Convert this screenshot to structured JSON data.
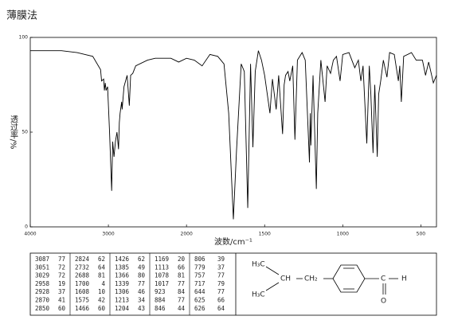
{
  "chart_data": {
    "type": "line",
    "title": "薄膜法",
    "x_label": "波数/cm⁻¹",
    "y_label": "透过率/%",
    "xlim": [
      4000,
      400
    ],
    "x_scale_break": 2000,
    "x_scale_ratio": 2,
    "xticks": [
      4000,
      3000,
      2000,
      1500,
      1000,
      500
    ],
    "ylim": [
      0,
      100
    ],
    "yticks": [
      0,
      50,
      100
    ],
    "x": [
      4000,
      3800,
      3600,
      3400,
      3300,
      3200,
      3100,
      3087,
      3060,
      3051,
      3040,
      3029,
      3010,
      2985,
      2958,
      2945,
      2928,
      2910,
      2890,
      2870,
      2860,
      2850,
      2830,
      2824,
      2800,
      2760,
      2732,
      2715,
      2688,
      2650,
      2500,
      2400,
      2200,
      2100,
      2000,
      1950,
      1900,
      1850,
      1800,
      1760,
      1730,
      1700,
      1680,
      1650,
      1630,
      1608,
      1595,
      1590,
      1575,
      1560,
      1540,
      1520,
      1500,
      1466,
      1450,
      1426,
      1410,
      1385,
      1375,
      1366,
      1350,
      1339,
      1320,
      1306,
      1290,
      1260,
      1240,
      1213,
      1208,
      1204,
      1190,
      1169,
      1160,
      1140,
      1113,
      1100,
      1078,
      1060,
      1040,
      1017,
      1000,
      960,
      923,
      900,
      884,
      870,
      846,
      830,
      820,
      806,
      795,
      779,
      770,
      757,
      740,
      717,
      700,
      670,
      644,
      635,
      625,
      610,
      560,
      530,
      490,
      470,
      450,
      420,
      400
    ],
    "series": [
      {
        "color": "#000000",
        "values": [
          93,
          93,
          93,
          92,
          91,
          90,
          83,
          77,
          78,
          72,
          76,
          72,
          74,
          50,
          19,
          45,
          37,
          45,
          50,
          41,
          55,
          60,
          66,
          62,
          74,
          80,
          64,
          80,
          81,
          85,
          88,
          89,
          89,
          87,
          89,
          88,
          85,
          91,
          90,
          86,
          60,
          4,
          40,
          86,
          82,
          10,
          65,
          86,
          42,
          82,
          93,
          88,
          80,
          60,
          78,
          62,
          80,
          49,
          75,
          80,
          82,
          77,
          85,
          46,
          88,
          92,
          88,
          34,
          60,
          43,
          80,
          20,
          60,
          88,
          66,
          85,
          81,
          88,
          90,
          77,
          91,
          92,
          84,
          88,
          77,
          85,
          44,
          85,
          70,
          39,
          75,
          37,
          70,
          77,
          88,
          79,
          92,
          91,
          77,
          85,
          66,
          90,
          92,
          88,
          88,
          80,
          87,
          76,
          80
        ]
      }
    ]
  },
  "peak_table": [
    [
      [
        3087,
        77
      ],
      [
        3051,
        72
      ],
      [
        3029,
        72
      ],
      [
        2958,
        19
      ],
      [
        2928,
        37
      ],
      [
        2870,
        41
      ],
      [
        2850,
        60
      ]
    ],
    [
      [
        2824,
        62
      ],
      [
        2732,
        64
      ],
      [
        2688,
        81
      ],
      [
        1700,
        4
      ],
      [
        1608,
        10
      ],
      [
        1575,
        42
      ],
      [
        1466,
        60
      ]
    ],
    [
      [
        1426,
        62
      ],
      [
        1385,
        49
      ],
      [
        1366,
        80
      ],
      [
        1339,
        77
      ],
      [
        1306,
        46
      ],
      [
        1213,
        34
      ],
      [
        1204,
        43
      ]
    ],
    [
      [
        1169,
        20
      ],
      [
        1113,
        66
      ],
      [
        1078,
        81
      ],
      [
        1017,
        77
      ],
      [
        923,
        84
      ],
      [
        884,
        77
      ],
      [
        846,
        44
      ]
    ],
    [
      [
        806,
        39
      ],
      [
        779,
        37
      ],
      [
        757,
        77
      ],
      [
        717,
        79
      ],
      [
        644,
        77
      ],
      [
        625,
        66
      ],
      [
        626,
        64
      ]
    ]
  ],
  "structure": {
    "labels": [
      "H₃C",
      "CH",
      "CH₂",
      "H₃C",
      "C",
      "H",
      "O"
    ]
  }
}
